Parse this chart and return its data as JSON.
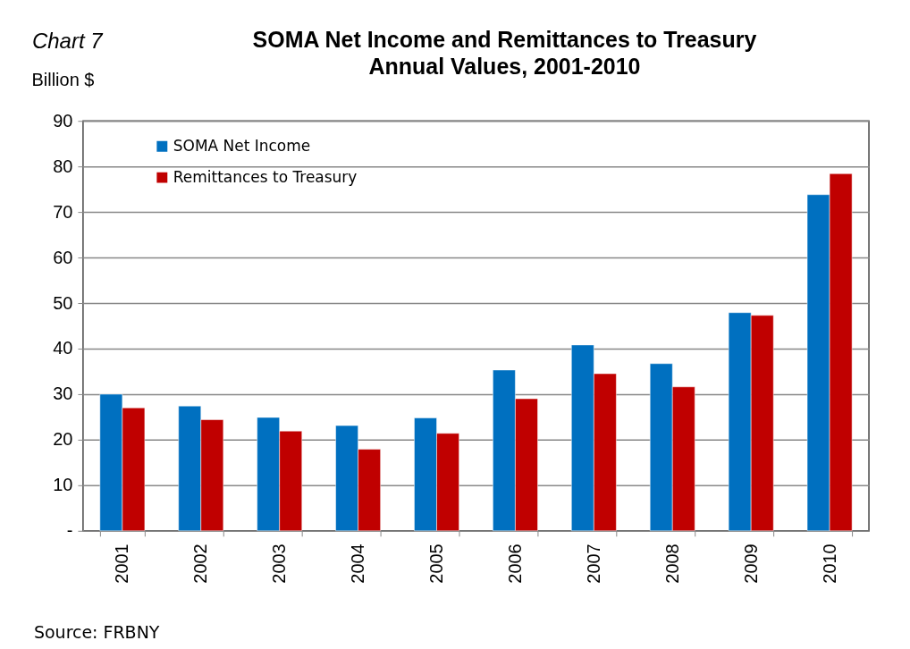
{
  "chart_data": {
    "type": "bar",
    "title": "SOMA Net Income and Remittances to Treasury\nAnnual Values, 2001-2010",
    "ylabel": "Billion $",
    "categories": [
      "2001",
      "2002",
      "2003",
      "2004",
      "2005",
      "2006",
      "2007",
      "2008",
      "2009",
      "2010"
    ],
    "series": [
      {
        "name": "SOMA Net Income",
        "color": "#0070c0",
        "values": [
          30.0,
          27.4,
          24.9,
          23.1,
          24.8,
          35.3,
          40.8,
          36.7,
          47.9,
          73.8
        ]
      },
      {
        "name": "Remittances to Treasury",
        "color": "#c00000",
        "values": [
          27.0,
          24.4,
          21.9,
          17.9,
          21.4,
          29.0,
          34.5,
          31.6,
          47.3,
          78.4
        ]
      }
    ],
    "ylim": [
      0,
      90
    ],
    "yticks": [
      {
        "value": 0,
        "label": "-"
      },
      10,
      20,
      30,
      40,
      50,
      60,
      70,
      80,
      90
    ],
    "grid": "y",
    "legend": "top left",
    "annotations": [
      "Chart 7",
      "Source: FRBNY"
    ]
  }
}
